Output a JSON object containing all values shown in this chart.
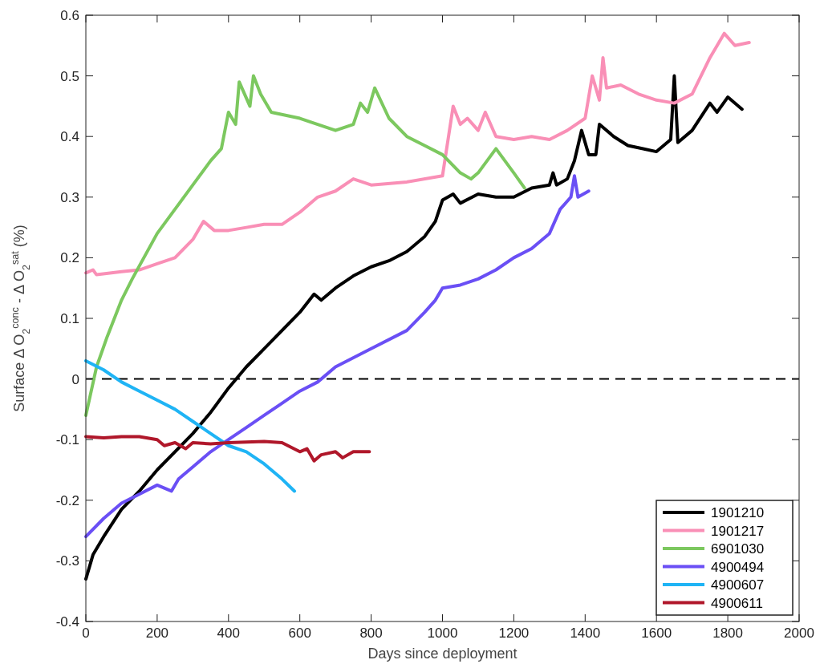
{
  "chart_data": {
    "type": "line",
    "xlabel": "Days since deployment",
    "ylabel": "Surface Δ O$_{2}$$^{conc}$ - Δ O$_{2}$$^{sat}$ (%)",
    "xlim": [
      0,
      2000
    ],
    "xticks": [
      0,
      200,
      400,
      600,
      800,
      1000,
      1200,
      1400,
      1600,
      1800,
      2000
    ],
    "ylim": [
      -0.4,
      0.6
    ],
    "yticks": [
      -0.4,
      -0.3,
      -0.2,
      -0.1,
      0,
      0.1,
      0.2,
      0.3,
      0.4,
      0.5,
      0.6
    ],
    "grid": false,
    "legend": "bottom right",
    "marker": "none",
    "line_style": "solid",
    "ref_lines": [
      {
        "axis": "y",
        "value": 0,
        "color": "#000000",
        "line_style": "dashed"
      }
    ],
    "series": [
      {
        "name": "1901210",
        "color": "#000000",
        "x": [
          0,
          20,
          50,
          100,
          150,
          200,
          250,
          300,
          350,
          400,
          450,
          500,
          550,
          600,
          640,
          660,
          700,
          750,
          800,
          850,
          900,
          950,
          980,
          1000,
          1030,
          1050,
          1100,
          1150,
          1200,
          1250,
          1300,
          1310,
          1320,
          1350,
          1370,
          1390,
          1410,
          1430,
          1440,
          1480,
          1520,
          1560,
          1600,
          1640,
          1650,
          1660,
          1700,
          1750,
          1770,
          1800,
          1840
        ],
        "values": [
          -0.33,
          -0.29,
          -0.26,
          -0.215,
          -0.185,
          -0.15,
          -0.12,
          -0.09,
          -0.055,
          -0.015,
          0.02,
          0.05,
          0.08,
          0.11,
          0.14,
          0.13,
          0.15,
          0.17,
          0.185,
          0.195,
          0.21,
          0.235,
          0.26,
          0.295,
          0.305,
          0.29,
          0.305,
          0.3,
          0.3,
          0.315,
          0.32,
          0.34,
          0.32,
          0.33,
          0.36,
          0.41,
          0.37,
          0.37,
          0.42,
          0.4,
          0.385,
          0.38,
          0.375,
          0.395,
          0.5,
          0.39,
          0.41,
          0.455,
          0.44,
          0.465,
          0.445
        ]
      },
      {
        "name": "1901217",
        "color": "#f98fb6",
        "x": [
          0,
          20,
          30,
          100,
          150,
          200,
          250,
          300,
          330,
          360,
          400,
          450,
          500,
          550,
          600,
          650,
          700,
          750,
          800,
          900,
          1000,
          1030,
          1050,
          1070,
          1100,
          1120,
          1150,
          1200,
          1250,
          1300,
          1350,
          1400,
          1420,
          1440,
          1450,
          1460,
          1500,
          1550,
          1600,
          1650,
          1700,
          1750,
          1790,
          1820,
          1860
        ],
        "values": [
          0.175,
          0.18,
          0.172,
          0.177,
          0.18,
          0.19,
          0.2,
          0.23,
          0.26,
          0.245,
          0.245,
          0.25,
          0.255,
          0.255,
          0.275,
          0.3,
          0.31,
          0.33,
          0.32,
          0.325,
          0.335,
          0.45,
          0.42,
          0.43,
          0.41,
          0.44,
          0.4,
          0.395,
          0.4,
          0.395,
          0.41,
          0.43,
          0.5,
          0.46,
          0.53,
          0.48,
          0.485,
          0.47,
          0.46,
          0.455,
          0.47,
          0.53,
          0.57,
          0.55,
          0.555
        ]
      },
      {
        "name": "6901030",
        "color": "#7cc85f",
        "x": [
          0,
          30,
          60,
          100,
          130,
          200,
          250,
          300,
          350,
          380,
          400,
          420,
          430,
          460,
          470,
          490,
          520,
          560,
          600,
          650,
          700,
          750,
          770,
          790,
          810,
          850,
          900,
          950,
          1000,
          1050,
          1080,
          1100,
          1150,
          1200,
          1230
        ],
        "values": [
          -0.06,
          0.02,
          0.07,
          0.13,
          0.165,
          0.24,
          0.28,
          0.32,
          0.36,
          0.38,
          0.44,
          0.42,
          0.49,
          0.45,
          0.5,
          0.47,
          0.44,
          0.435,
          0.43,
          0.42,
          0.41,
          0.42,
          0.455,
          0.44,
          0.48,
          0.43,
          0.4,
          0.385,
          0.37,
          0.34,
          0.33,
          0.34,
          0.38,
          0.34,
          0.315
        ]
      },
      {
        "name": "4900494",
        "color": "#6a4ff5",
        "x": [
          0,
          50,
          100,
          150,
          200,
          240,
          260,
          300,
          350,
          400,
          450,
          500,
          550,
          600,
          650,
          700,
          800,
          900,
          950,
          980,
          1000,
          1050,
          1100,
          1150,
          1200,
          1250,
          1300,
          1330,
          1360,
          1370,
          1380,
          1410
        ],
        "values": [
          -0.26,
          -0.23,
          -0.205,
          -0.19,
          -0.175,
          -0.185,
          -0.165,
          -0.145,
          -0.12,
          -0.1,
          -0.08,
          -0.06,
          -0.04,
          -0.02,
          -0.005,
          0.02,
          0.05,
          0.08,
          0.11,
          0.13,
          0.15,
          0.155,
          0.165,
          0.18,
          0.2,
          0.215,
          0.24,
          0.28,
          0.3,
          0.335,
          0.3,
          0.31
        ]
      },
      {
        "name": "4900607",
        "color": "#1fb4f5",
        "x": [
          0,
          50,
          100,
          150,
          200,
          250,
          300,
          350,
          400,
          450,
          500,
          550,
          585
        ],
        "values": [
          0.03,
          0.015,
          -0.005,
          -0.02,
          -0.035,
          -0.05,
          -0.07,
          -0.09,
          -0.11,
          -0.12,
          -0.14,
          -0.165,
          -0.185
        ]
      },
      {
        "name": "4900611",
        "color": "#b0172a",
        "x": [
          0,
          50,
          100,
          150,
          200,
          220,
          250,
          280,
          300,
          350,
          400,
          450,
          500,
          550,
          600,
          620,
          640,
          660,
          700,
          720,
          750,
          795
        ],
        "values": [
          -0.095,
          -0.097,
          -0.095,
          -0.095,
          -0.1,
          -0.11,
          -0.105,
          -0.115,
          -0.105,
          -0.107,
          -0.105,
          -0.104,
          -0.103,
          -0.105,
          -0.12,
          -0.115,
          -0.135,
          -0.125,
          -0.12,
          -0.13,
          -0.12,
          -0.12
        ]
      }
    ]
  }
}
